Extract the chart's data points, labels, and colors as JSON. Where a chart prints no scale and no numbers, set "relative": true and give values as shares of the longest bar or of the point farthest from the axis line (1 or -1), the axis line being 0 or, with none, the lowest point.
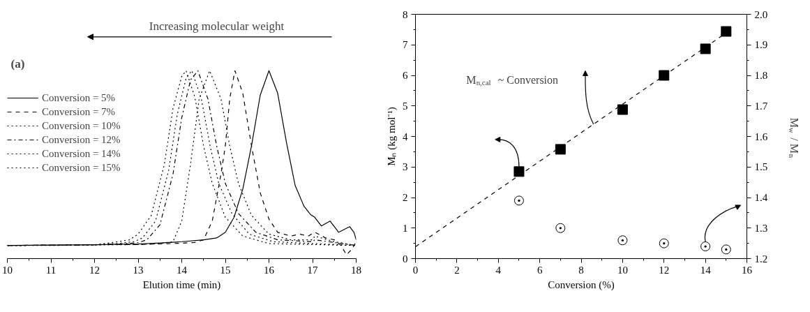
{
  "chart_data": [
    {
      "type": "line",
      "relative": true,
      "xlabel": "Elution time (min)",
      "xlim": [
        10,
        18
      ],
      "xticks": [
        10,
        11,
        12,
        13,
        14,
        15,
        16,
        17,
        18
      ],
      "tick_labels": "x",
      "legend": "top left",
      "annotations": [
        "Increasing molecular weight",
        "(a)"
      ],
      "series": [
        {
          "name": "Conversion = 5%",
          "color": "#000000",
          "line_style": "solid",
          "x": [
            10,
            11,
            12,
            13,
            13.5,
            14,
            14.5,
            14.8,
            15,
            15.2,
            15.4,
            15.6,
            15.8,
            16,
            16.2,
            16.4,
            16.6,
            16.8,
            16.95,
            17.05,
            17.2,
            17.4,
            17.6,
            17.85,
            17.95,
            18
          ],
          "values": [
            0.07,
            0.072,
            0.074,
            0.078,
            0.083,
            0.09,
            0.1,
            0.11,
            0.14,
            0.22,
            0.37,
            0.6,
            0.87,
            1.0,
            0.88,
            0.62,
            0.39,
            0.28,
            0.235,
            0.22,
            0.174,
            0.2,
            0.14,
            0.17,
            0.14,
            0.1
          ]
        },
        {
          "name": "Conversion = 7%",
          "color": "#000000",
          "line_style": "dashed",
          "x": [
            10,
            11,
            12,
            13,
            13.5,
            14,
            14.3,
            14.5,
            14.7,
            14.9,
            15,
            15.1,
            15.22,
            15.4,
            15.6,
            15.8,
            16,
            16.2,
            16.5,
            16.7,
            16.9,
            17.05,
            17.3,
            17.5,
            17.65,
            17.78,
            17.9,
            18
          ],
          "values": [
            0.07,
            0.072,
            0.074,
            0.075,
            0.078,
            0.082,
            0.086,
            0.1,
            0.2,
            0.45,
            0.6,
            0.85,
            1.0,
            0.88,
            0.6,
            0.35,
            0.21,
            0.14,
            0.12,
            0.13,
            0.12,
            0.14,
            0.11,
            0.1,
            0.07,
            0.02,
            0.05,
            0.09
          ]
        },
        {
          "name": "Conversion = 10%",
          "color": "#000000",
          "line_style": "dotted",
          "x": [
            10,
            11,
            12,
            13,
            13.5,
            13.8,
            14,
            14.2,
            14.4,
            14.64,
            14.9,
            15.1,
            15.3,
            15.6,
            16,
            16.5,
            17,
            17.05,
            17.5,
            18
          ],
          "values": [
            0.07,
            0.07,
            0.072,
            0.075,
            0.08,
            0.09,
            0.2,
            0.5,
            0.85,
            1.0,
            0.85,
            0.6,
            0.4,
            0.23,
            0.13,
            0.1,
            0.1,
            0.12,
            0.09,
            0.07
          ]
        },
        {
          "name": "Conversion = 12%",
          "color": "#000000",
          "line_style": "dashdot",
          "x": [
            10,
            11,
            12,
            12.6,
            13,
            13.2,
            13.5,
            13.8,
            14,
            14.2,
            14.37,
            14.6,
            14.8,
            15,
            15.3,
            15.7,
            16.2,
            17,
            17.05,
            18
          ],
          "values": [
            0.07,
            0.071,
            0.073,
            0.078,
            0.085,
            0.1,
            0.18,
            0.45,
            0.75,
            0.95,
            1.0,
            0.85,
            0.6,
            0.4,
            0.24,
            0.14,
            0.1,
            0.09,
            0.1,
            0.07
          ]
        },
        {
          "name": "Conversion = 14%",
          "color": "#000000",
          "line_style": "dotted",
          "x": [
            10,
            11,
            12,
            12.5,
            12.9,
            13.1,
            13.4,
            13.7,
            13.9,
            14.1,
            14.23,
            14.45,
            14.65,
            14.85,
            15.15,
            15.55,
            16.1,
            17,
            18
          ],
          "values": [
            0.07,
            0.071,
            0.073,
            0.08,
            0.09,
            0.11,
            0.2,
            0.47,
            0.77,
            0.96,
            1.0,
            0.85,
            0.6,
            0.4,
            0.24,
            0.13,
            0.09,
            0.08,
            0.07
          ]
        },
        {
          "name": "Conversion = 15%",
          "color": "#000000",
          "line_style": "dotted",
          "x": [
            10,
            11,
            12,
            12.4,
            12.8,
            13,
            13.3,
            13.6,
            13.8,
            14,
            14.1,
            14.3,
            14.5,
            14.7,
            15,
            15.4,
            16,
            17,
            18
          ],
          "values": [
            0.07,
            0.071,
            0.074,
            0.085,
            0.1,
            0.13,
            0.23,
            0.5,
            0.8,
            0.97,
            1.0,
            0.86,
            0.6,
            0.4,
            0.22,
            0.12,
            0.08,
            0.075,
            0.07
          ]
        }
      ]
    },
    {
      "type": "scatter",
      "xlabel": "Conversion (%)",
      "ylabel": "Mₙ (kg mol⁻¹)",
      "y2label": "M$_{w}$ / M$_{n}$",
      "xlim": [
        0,
        16
      ],
      "xticks": [
        0,
        2,
        4,
        6,
        8,
        10,
        12,
        14,
        16
      ],
      "ylim": [
        0,
        8
      ],
      "yticks": [
        0,
        1,
        2,
        3,
        4,
        5,
        6,
        7,
        8
      ],
      "y2lim": [
        1.2,
        2.0
      ],
      "y2ticks": [
        1.2,
        1.3,
        1.4,
        1.5,
        1.6,
        1.7,
        1.8,
        1.9,
        {
          "value": 2.0,
          "label": "2.0"
        }
      ],
      "annotations": [
        "M$_{n,cal}$ ~ Conversion"
      ],
      "series": [
        {
          "type": "line",
          "color": "#000000",
          "line_style": "dashed",
          "x": [
            0,
            15.17
          ],
          "values": [
            0.39,
            7.47
          ]
        },
        {
          "type": "scatter",
          "color": "#000000",
          "marker": "square",
          "x": [
            5,
            7,
            10,
            12,
            14,
            15
          ],
          "values": [
            2.85,
            3.58,
            4.88,
            6.0,
            6.87,
            7.44
          ]
        },
        {
          "type": "scatter",
          "color": "#000000",
          "marker": "circle",
          "axis": "y2",
          "x": [
            5,
            7,
            10,
            12,
            14,
            15
          ],
          "values": [
            1.39,
            1.3,
            1.26,
            1.25,
            1.24,
            1.23
          ]
        }
      ]
    }
  ]
}
